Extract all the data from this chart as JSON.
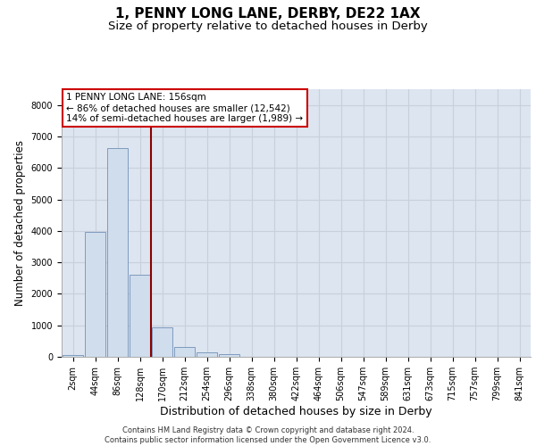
{
  "title_line1": "1, PENNY LONG LANE, DERBY, DE22 1AX",
  "title_line2": "Size of property relative to detached houses in Derby",
  "xlabel": "Distribution of detached houses by size in Derby",
  "ylabel": "Number of detached properties",
  "footnote": "Contains HM Land Registry data © Crown copyright and database right 2024.\nContains public sector information licensed under the Open Government Licence v3.0.",
  "bar_categories": [
    "2sqm",
    "44sqm",
    "86sqm",
    "128sqm",
    "170sqm",
    "212sqm",
    "254sqm",
    "296sqm",
    "338sqm",
    "380sqm",
    "422sqm",
    "464sqm",
    "506sqm",
    "547sqm",
    "589sqm",
    "631sqm",
    "673sqm",
    "715sqm",
    "757sqm",
    "799sqm",
    "841sqm"
  ],
  "bar_values": [
    60,
    3980,
    6620,
    2620,
    940,
    310,
    130,
    90,
    0,
    0,
    0,
    0,
    0,
    0,
    0,
    0,
    0,
    0,
    0,
    0,
    0
  ],
  "bar_color": "#d0dded",
  "bar_edge_color": "#7090b8",
  "vline_x": 3.5,
  "vline_color": "#8b0000",
  "annotation_text": "1 PENNY LONG LANE: 156sqm\n← 86% of detached houses are smaller (12,542)\n14% of semi-detached houses are larger (1,989) →",
  "annotation_box_color": "#cc0000",
  "ylim": [
    0,
    8500
  ],
  "yticks": [
    0,
    1000,
    2000,
    3000,
    4000,
    5000,
    6000,
    7000,
    8000
  ],
  "grid_color": "#c8d0dc",
  "bg_color": "#dde5f0",
  "title_fontsize": 11,
  "subtitle_fontsize": 9.5,
  "axis_label_fontsize": 8.5,
  "tick_fontsize": 7,
  "annotation_fontsize": 7.5,
  "footnote_fontsize": 6
}
